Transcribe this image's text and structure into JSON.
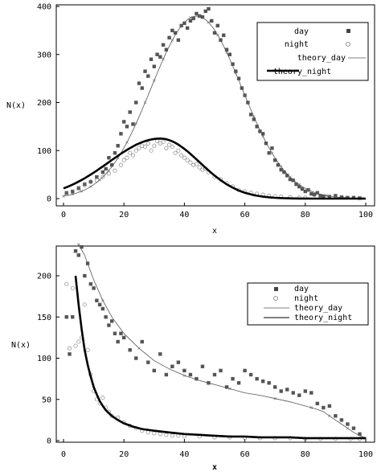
{
  "chart_data": [
    {
      "type": "scatter",
      "xlabel": "x",
      "ylabel": "N(x)",
      "xlim": [
        0,
        100
      ],
      "ylim": [
        0,
        400
      ],
      "xticks": [
        "0",
        "20",
        "40",
        "60",
        "80",
        "100"
      ],
      "yticks": [
        "0",
        "100",
        "200",
        "300",
        "400"
      ],
      "legend_position": "top-right",
      "legend": [
        "day",
        "night",
        "theory_day",
        "theory_night"
      ],
      "series": [
        {
          "name": "day",
          "marker": "filled-square",
          "x": [
            1,
            3,
            5,
            7,
            9,
            11,
            13,
            14,
            15,
            16,
            17,
            18,
            19,
            20,
            21,
            22,
            23,
            24,
            25,
            26,
            27,
            28,
            29,
            30,
            31,
            32,
            33,
            34,
            35,
            36,
            37,
            38,
            39,
            40,
            41,
            42,
            43,
            44,
            45,
            46,
            47,
            48,
            49,
            50,
            51,
            52,
            53,
            54,
            55,
            56,
            57,
            58,
            59,
            60,
            61,
            62,
            63,
            64,
            65,
            66,
            67,
            68,
            69,
            70,
            71,
            72,
            73,
            74,
            75,
            76,
            77,
            78,
            79,
            80,
            81,
            82,
            83,
            84,
            85,
            86,
            88,
            90,
            92,
            94,
            96,
            98
          ],
          "y": [
            12,
            15,
            22,
            30,
            35,
            45,
            55,
            62,
            85,
            70,
            95,
            110,
            135,
            160,
            150,
            180,
            155,
            200,
            240,
            230,
            265,
            255,
            290,
            275,
            300,
            295,
            320,
            310,
            335,
            350,
            345,
            330,
            360,
            365,
            355,
            370,
            375,
            385,
            380,
            378,
            390,
            395,
            370,
            345,
            360,
            330,
            340,
            310,
            300,
            280,
            265,
            250,
            230,
            215,
            200,
            175,
            165,
            150,
            140,
            135,
            115,
            95,
            105,
            80,
            70,
            60,
            55,
            48,
            40,
            38,
            30,
            25,
            20,
            15,
            18,
            10,
            8,
            12,
            6,
            5,
            4,
            6,
            3,
            2,
            2,
            1
          ]
        },
        {
          "name": "night",
          "marker": "open-circle",
          "x": [
            1,
            3,
            5,
            7,
            9,
            11,
            13,
            15,
            17,
            19,
            20,
            21,
            22,
            23,
            24,
            25,
            26,
            27,
            28,
            29,
            30,
            31,
            32,
            33,
            34,
            35,
            36,
            37,
            38,
            39,
            40,
            41,
            42,
            43,
            44,
            45,
            46,
            47,
            48,
            50,
            52,
            54,
            56,
            58,
            60,
            62,
            64,
            66,
            68,
            70,
            72,
            75,
            78,
            80
          ],
          "y": [
            10,
            14,
            20,
            28,
            35,
            38,
            45,
            52,
            58,
            70,
            80,
            85,
            95,
            90,
            100,
            105,
            110,
            108,
            115,
            100,
            110,
            120,
            115,
            118,
            105,
            112,
            108,
            95,
            100,
            90,
            85,
            80,
            75,
            70,
            72,
            65,
            60,
            62,
            55,
            45,
            40,
            32,
            25,
            18,
            15,
            12,
            10,
            8,
            6,
            5,
            4,
            3,
            2,
            2
          ]
        },
        {
          "name": "theory_day",
          "marker": "thin-line-x",
          "mu": 44,
          "sigma": 15,
          "peak": 380
        },
        {
          "name": "theory_night",
          "marker": "thick-line",
          "mu": 32,
          "sigma_left": 17,
          "sigma_right": 13,
          "peak": 125
        }
      ]
    },
    {
      "type": "scatter",
      "xlabel": "x",
      "ylabel": "N(x)",
      "xlim": [
        0,
        100
      ],
      "ylim": [
        0,
        240
      ],
      "xticks": [
        "0",
        "20",
        "40",
        "60",
        "80",
        "100"
      ],
      "yticks": [
        "0",
        "50",
        "100",
        "150",
        "200"
      ],
      "legend_position": "top-right",
      "legend": [
        "day",
        "night",
        "theory_day",
        "theory_night"
      ],
      "series": [
        {
          "name": "day",
          "marker": "filled-square",
          "x": [
            1,
            2,
            3,
            4,
            5,
            6,
            7,
            8,
            9,
            10,
            11,
            12,
            13,
            14,
            15,
            16,
            17,
            18,
            19,
            20,
            22,
            24,
            26,
            28,
            30,
            32,
            34,
            36,
            38,
            40,
            42,
            44,
            46,
            48,
            50,
            52,
            54,
            56,
            58,
            60,
            62,
            64,
            66,
            68,
            70,
            72,
            74,
            76,
            78,
            80,
            82,
            84,
            86,
            88,
            90,
            92,
            94,
            96,
            98
          ],
          "y": [
            150,
            105,
            150,
            230,
            225,
            235,
            200,
            215,
            190,
            185,
            170,
            165,
            160,
            150,
            140,
            145,
            130,
            120,
            130,
            125,
            110,
            100,
            120,
            95,
            85,
            105,
            80,
            90,
            95,
            85,
            80,
            75,
            90,
            70,
            80,
            85,
            65,
            75,
            70,
            85,
            80,
            75,
            72,
            70,
            65,
            60,
            62,
            58,
            55,
            60,
            58,
            45,
            40,
            42,
            30,
            25,
            20,
            15,
            8
          ]
        },
        {
          "name": "night",
          "marker": "open-circle",
          "x": [
            1,
            2,
            3,
            4,
            5,
            6,
            7,
            8,
            9,
            10,
            11,
            12,
            13,
            14,
            15,
            16,
            18,
            20,
            22,
            24,
            26,
            28,
            30,
            32,
            34,
            36,
            38,
            40,
            45,
            50,
            55,
            60,
            65,
            70,
            75,
            80,
            85,
            90,
            95,
            98
          ],
          "y": [
            190,
            112,
            185,
            115,
            120,
            125,
            165,
            110,
            80,
            60,
            50,
            45,
            52,
            40,
            35,
            30,
            28,
            22,
            18,
            15,
            12,
            10,
            9,
            8,
            7,
            6,
            6,
            5,
            5,
            4,
            4,
            3,
            3,
            3,
            3,
            2,
            2,
            2,
            2,
            2
          ]
        },
        {
          "name": "theory_day",
          "marker": "thin-line-x",
          "x": [
            5,
            7,
            10,
            13,
            16,
            20,
            25,
            30,
            35,
            40,
            45,
            50,
            55,
            60,
            65,
            70,
            75,
            80,
            82,
            84,
            86,
            88,
            90,
            92,
            94,
            96,
            98,
            100
          ],
          "y": [
            238,
            225,
            195,
            170,
            150,
            130,
            112,
            97,
            87,
            79,
            73,
            68,
            63,
            58,
            55,
            51,
            47,
            42,
            40,
            38,
            35,
            30,
            25,
            20,
            15,
            10,
            6,
            3
          ]
        },
        {
          "name": "theory_night",
          "marker": "thick-line",
          "x": [
            4,
            5,
            6,
            7,
            8,
            9,
            10,
            11,
            12,
            13,
            14,
            16,
            18,
            20,
            23,
            26,
            30,
            35,
            40,
            45,
            50,
            55,
            60,
            65,
            70,
            75,
            80,
            85,
            90,
            95,
            100
          ],
          "y": [
            200,
            165,
            135,
            110,
            92,
            78,
            65,
            56,
            48,
            42,
            37,
            30,
            25,
            21,
            17,
            14,
            12,
            10,
            8,
            7,
            6,
            5,
            5,
            4,
            4,
            4,
            3,
            3,
            3,
            3,
            3
          ]
        }
      ]
    }
  ]
}
